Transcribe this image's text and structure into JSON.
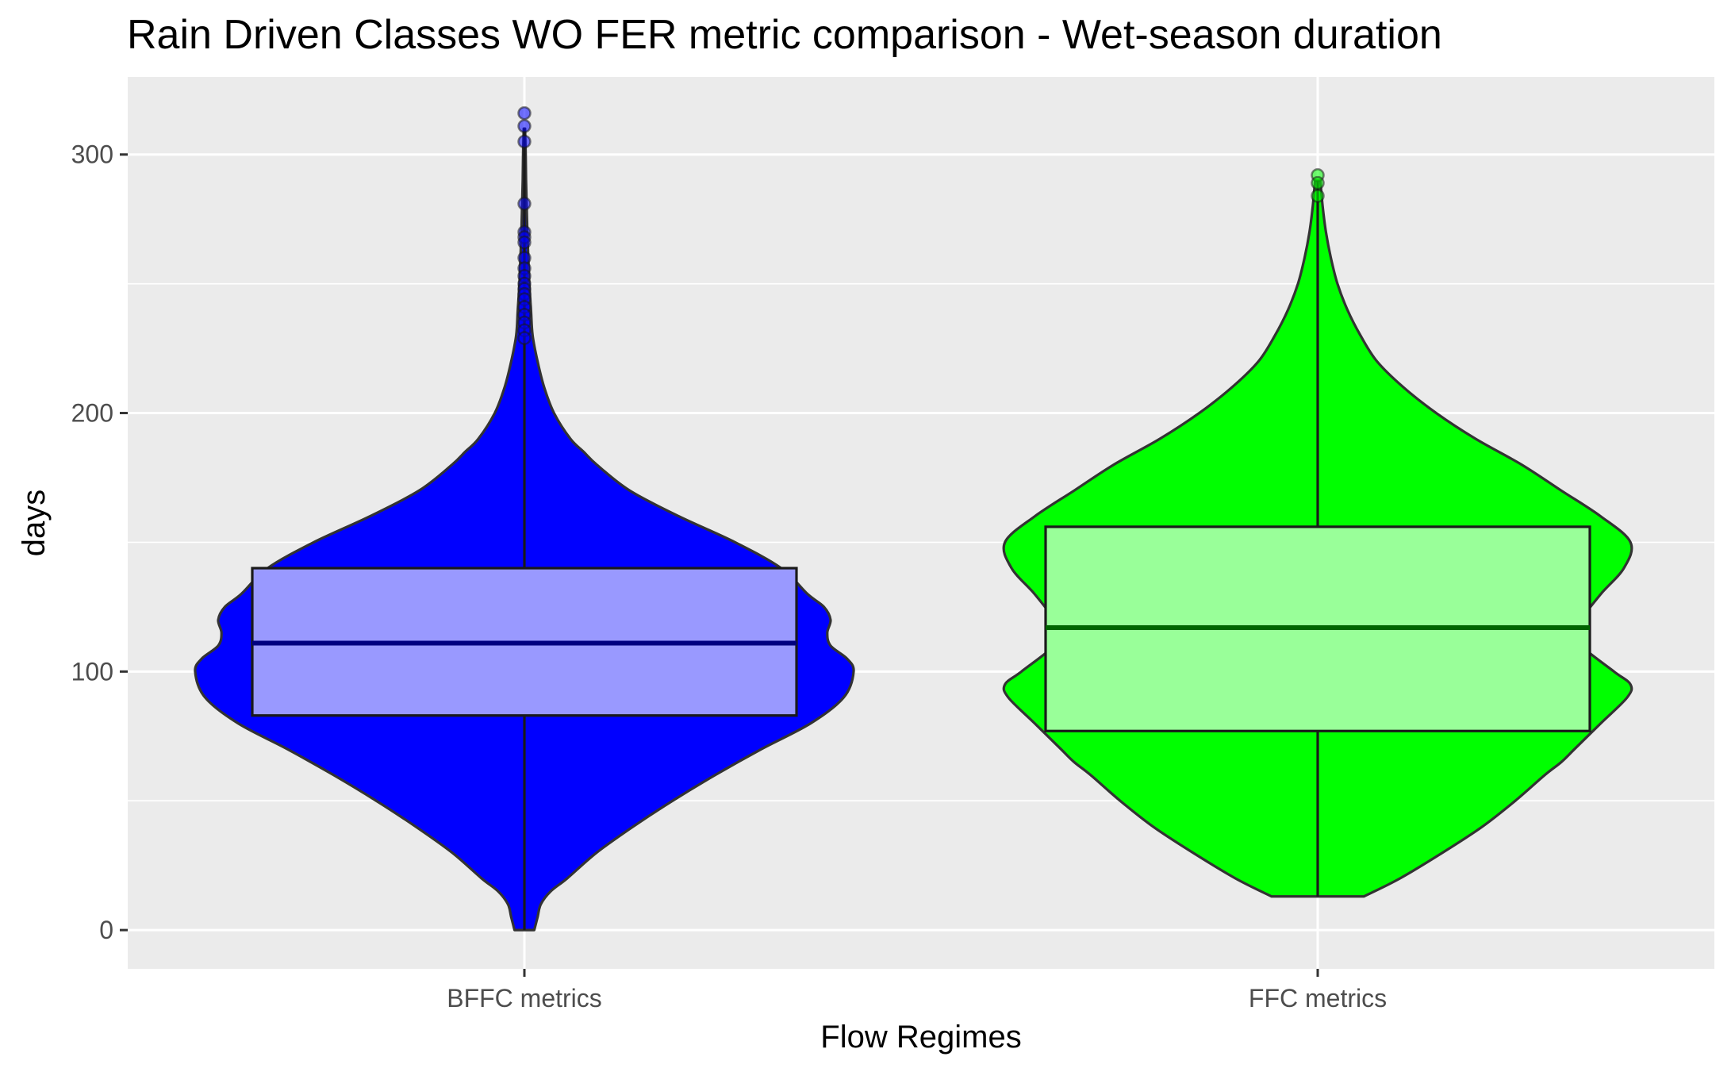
{
  "chart_data": {
    "type": "violin",
    "title": "Rain Driven Classes WO FER metric comparison  - Wet-season duration",
    "xlabel": "Flow Regimes",
    "ylabel": "days",
    "ylim": [
      -15,
      330
    ],
    "yticks": [
      0,
      100,
      200,
      300
    ],
    "categories": [
      "BFFC metrics",
      "FFC metrics"
    ],
    "grid": true,
    "series": [
      {
        "category": "BFFC metrics",
        "fill": "#0000ff",
        "box_fill": "#9999ff",
        "median_color": "#000080",
        "box": {
          "q1": 83,
          "median": 111,
          "q3": 140,
          "whisker_low": 0,
          "whisker_high": 310
        },
        "outliers": [
          316,
          311,
          305,
          281,
          270,
          268,
          266,
          260,
          256,
          253,
          250,
          248,
          246,
          244,
          241,
          238,
          235,
          232,
          229
        ],
        "density": [
          [
            0,
            0.03
          ],
          [
            5,
            0.04
          ],
          [
            10,
            0.05
          ],
          [
            15,
            0.08
          ],
          [
            20,
            0.13
          ],
          [
            30,
            0.22
          ],
          [
            40,
            0.33
          ],
          [
            50,
            0.45
          ],
          [
            60,
            0.58
          ],
          [
            70,
            0.72
          ],
          [
            80,
            0.87
          ],
          [
            90,
            0.97
          ],
          [
            100,
            1.0
          ],
          [
            105,
            0.98
          ],
          [
            110,
            0.93
          ],
          [
            115,
            0.92
          ],
          [
            120,
            0.93
          ],
          [
            125,
            0.91
          ],
          [
            130,
            0.86
          ],
          [
            140,
            0.78
          ],
          [
            150,
            0.64
          ],
          [
            160,
            0.47
          ],
          [
            170,
            0.32
          ],
          [
            180,
            0.22
          ],
          [
            185,
            0.18
          ],
          [
            190,
            0.14
          ],
          [
            200,
            0.09
          ],
          [
            210,
            0.06
          ],
          [
            220,
            0.04
          ],
          [
            230,
            0.025
          ],
          [
            240,
            0.02
          ],
          [
            250,
            0.015
          ],
          [
            260,
            0.012
          ],
          [
            270,
            0.009
          ],
          [
            280,
            0.007
          ],
          [
            290,
            0.005
          ],
          [
            300,
            0.004
          ],
          [
            310,
            0.002
          ]
        ]
      },
      {
        "category": "FFC metrics",
        "fill": "#00ff00",
        "box_fill": "#99ff99",
        "median_color": "#006400",
        "box": {
          "q1": 77,
          "median": 117,
          "q3": 156,
          "whisker_low": 13,
          "whisker_high": 290
        },
        "outliers": [
          292,
          289,
          284
        ],
        "density": [
          [
            13,
            0.14
          ],
          [
            20,
            0.25
          ],
          [
            30,
            0.38
          ],
          [
            40,
            0.5
          ],
          [
            50,
            0.6
          ],
          [
            60,
            0.69
          ],
          [
            65,
            0.74
          ],
          [
            70,
            0.78
          ],
          [
            80,
            0.86
          ],
          [
            90,
            0.94
          ],
          [
            95,
            0.95
          ],
          [
            100,
            0.9
          ],
          [
            110,
            0.8
          ],
          [
            115,
            0.79
          ],
          [
            120,
            0.8
          ],
          [
            130,
            0.86
          ],
          [
            140,
            0.93
          ],
          [
            150,
            0.95
          ],
          [
            160,
            0.86
          ],
          [
            170,
            0.74
          ],
          [
            180,
            0.62
          ],
          [
            190,
            0.48
          ],
          [
            200,
            0.36
          ],
          [
            210,
            0.26
          ],
          [
            220,
            0.18
          ],
          [
            230,
            0.13
          ],
          [
            240,
            0.09
          ],
          [
            250,
            0.06
          ],
          [
            260,
            0.04
          ],
          [
            270,
            0.025
          ],
          [
            280,
            0.015
          ],
          [
            290,
            0.008
          ]
        ]
      }
    ]
  }
}
